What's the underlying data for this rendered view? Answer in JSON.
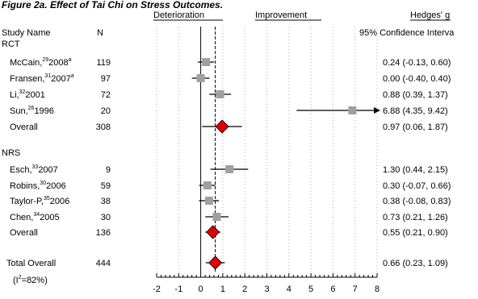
{
  "header": {
    "title": "Figure 2a. Effect of Tai Chi on Stress Outcomes.",
    "deterioration": "Deterioration",
    "improvement": "Improvement",
    "effect_measure": "Hedges' g",
    "col_study": "Study Name",
    "col_n": "N",
    "col_ci": "95% Confidence Interva"
  },
  "chart_data": {
    "type": "forest",
    "xlim": [
      -2,
      8
    ],
    "x_ticks": [
      "-2",
      "-1",
      "0",
      "1",
      "2",
      "3",
      "4",
      "5",
      "6",
      "7",
      "8"
    ],
    "null_line": 0,
    "overall_line": 0.66,
    "i2_label": "(I",
    "i2_value": "=82%)",
    "groups": [
      {
        "label": "RCT",
        "studies": [
          {
            "name": "McCain,",
            "ref": "29",
            "year": "2008",
            "suffix": "a",
            "n": "119",
            "g": 0.24,
            "lo": -0.13,
            "hi": 0.6,
            "ci_text": "0.24 (-0.13, 0.60)"
          },
          {
            "name": "Fransen,",
            "ref": "31",
            "year": "2007",
            "suffix": "a",
            "n": "97",
            "g": 0.0,
            "lo": -0.4,
            "hi": 0.4,
            "ci_text": "0.00 (-0.40, 0.40)"
          },
          {
            "name": "Li,",
            "ref": "32",
            "year": "2001",
            "suffix": "",
            "n": "72",
            "g": 0.88,
            "lo": 0.39,
            "hi": 1.37,
            "ci_text": "0.88 (0.39, 1.37)"
          },
          {
            "name": "Sun,",
            "ref": "26",
            "year": "1996",
            "suffix": "",
            "n": "20",
            "g": 6.88,
            "lo": 4.35,
            "hi": 9.42,
            "ci_text": "6.88 (4.35, 9.42)"
          }
        ],
        "overall": {
          "label": "Overall",
          "n": "308",
          "g": 0.97,
          "lo": 0.06,
          "hi": 1.87,
          "ci_text": "0.97 (0.06, 1.87)"
        }
      },
      {
        "label": "NRS",
        "studies": [
          {
            "name": "Esch,",
            "ref": "33",
            "year": "2007",
            "suffix": "",
            "n": "9",
            "g": 1.3,
            "lo": 0.44,
            "hi": 2.15,
            "ci_text": "1.30 (0.44, 2.15)"
          },
          {
            "name": "Robins,",
            "ref": "30",
            "year": "2006",
            "suffix": "",
            "n": "59",
            "g": 0.3,
            "lo": -0.07,
            "hi": 0.66,
            "ci_text": "0.30 (-0.07, 0.66)"
          },
          {
            "name": "Taylor-P,",
            "ref": "35",
            "year": "2006",
            "suffix": "",
            "n": "38",
            "g": 0.38,
            "lo": -0.08,
            "hi": 0.83,
            "ci_text": "0.38 (-0.08, 0.83)"
          },
          {
            "name": "Chen,",
            "ref": "34",
            "year": "2005",
            "suffix": "",
            "n": "30",
            "g": 0.73,
            "lo": 0.21,
            "hi": 1.26,
            "ci_text": "0.73 (0.21, 1.26)"
          }
        ],
        "overall": {
          "label": "Overall",
          "n": "136",
          "g": 0.55,
          "lo": 0.21,
          "hi": 0.9,
          "ci_text": "0.55 (0.21, 0.90)"
        }
      }
    ],
    "total": {
      "label": "Total Overall",
      "n": "444",
      "g": 0.66,
      "lo": 0.23,
      "hi": 1.09,
      "ci_text": "0.66 (0.23, 1.09)"
    },
    "colors": {
      "study_box": "#a0a0a0",
      "diamond": "#e00000",
      "line": "#000000",
      "grid": "#b0b0b0"
    }
  }
}
